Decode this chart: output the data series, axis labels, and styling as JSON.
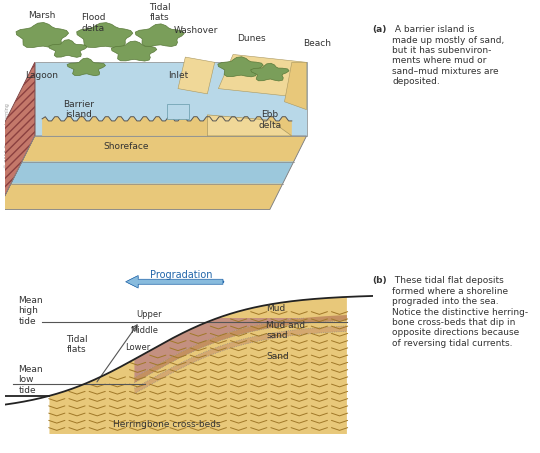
{
  "bg_color": "#ffffff",
  "title_a_bold": "(a)",
  "title_a_rest": " A barrier island is\nmade up mostly of sand,\nbut it has subenviron-\nments where mud or\nsand–mud mixtures are\ndeposited.",
  "title_b_bold": "(b)",
  "title_b_rest": " These tidal flat deposits\nformed where a shoreline\nprograded into the sea.\nNotice the distinctive herring-\nbone cross-beds that dip in\nopposite directions because\nof reversing tidal currents.",
  "colors": {
    "sand_yellow": "#E8C87A",
    "sand_light": "#F0D898",
    "lagoon_blue": "#B8D8E8",
    "water_blue": "#9CC8DC",
    "green_veg": "#7A9E5A",
    "green_dark": "#5A7A3A",
    "cross_hatch_red": "#C4786A",
    "shoreface_front": "#BDD4DC",
    "shoreface_side": "#9AB8C8",
    "mud_pink": "#C49080",
    "mud_sand_stripe1": "#D4A870",
    "mud_sand_stripe2": "#C49060",
    "arrow_blue_light": "#88BBDD",
    "arrow_blue_dark": "#2266AA",
    "text_color": "#333333",
    "line_color": "#444444"
  }
}
